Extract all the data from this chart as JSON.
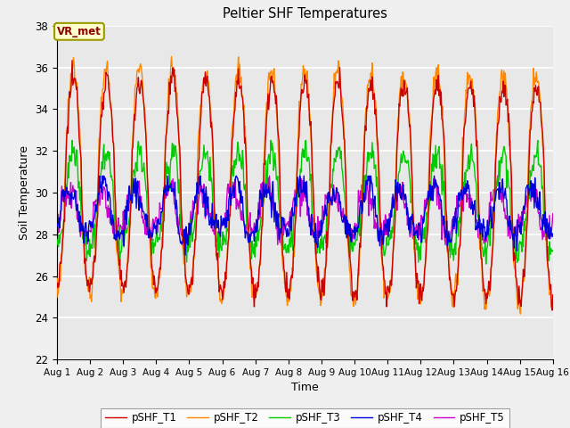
{
  "title": "Peltier SHF Temperatures",
  "xlabel": "Time",
  "ylabel": "Soil Temperature",
  "ylim": [
    22,
    38
  ],
  "yticks": [
    22,
    24,
    26,
    28,
    30,
    32,
    34,
    36,
    38
  ],
  "xtick_labels": [
    "Aug 1",
    "Aug 2",
    "Aug 3",
    "Aug 4",
    "Aug 5",
    "Aug 6",
    "Aug 7",
    "Aug 8",
    "Aug 9",
    "Aug 10",
    "Aug 11",
    "Aug 12",
    "Aug 13",
    "Aug 14",
    "Aug 15",
    "Aug 16"
  ],
  "colors": {
    "pSHF_T1": "#cc0000",
    "pSHF_T2": "#ff8800",
    "pSHF_T3": "#00cc00",
    "pSHF_T4": "#0000dd",
    "pSHF_T5": "#cc00cc"
  },
  "annotation": "VR_met",
  "legend_labels": [
    "pSHF_T1",
    "pSHF_T2",
    "pSHF_T3",
    "pSHF_T4",
    "pSHF_T5"
  ],
  "n_points": 720,
  "days": 15,
  "fig_bg": "#f0f0f0",
  "ax_bg": "#e8e8e8",
  "grid_color": "#ffffff",
  "figsize": [
    6.4,
    4.8
  ],
  "dpi": 100
}
